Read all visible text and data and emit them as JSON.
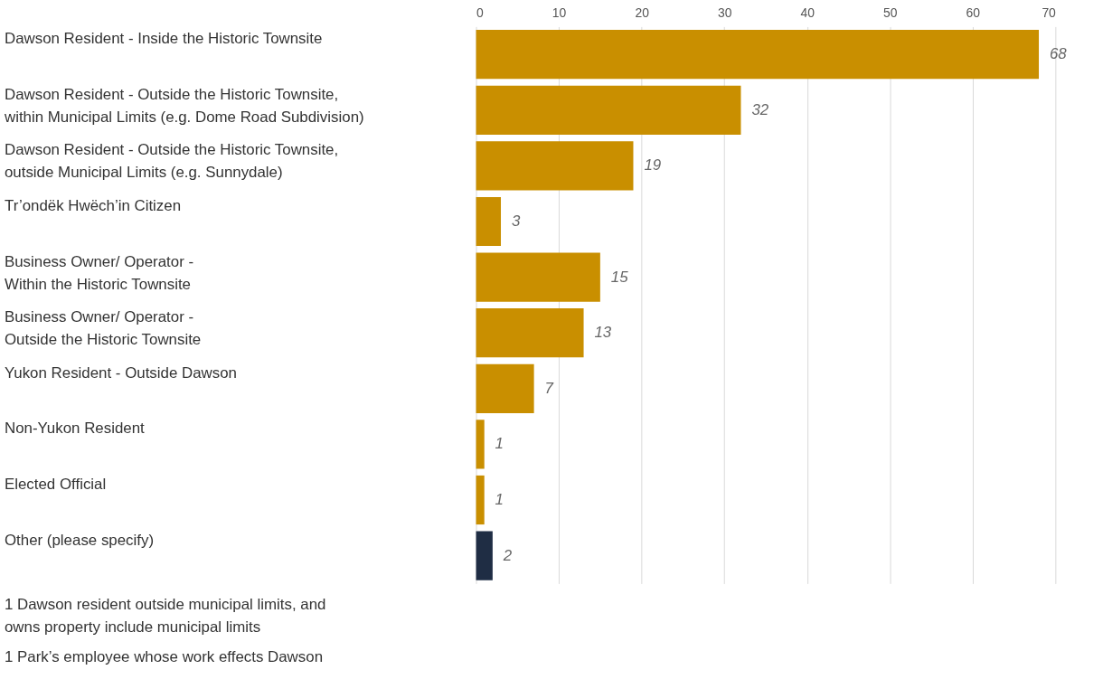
{
  "chart_data": {
    "type": "bar",
    "orientation": "horizontal",
    "categories": [
      "Dawson Resident - Inside the Historic Townsite",
      "Dawson Resident - Outside the Historic Townsite,\nwithin Municipal Limits (e.g. Dome Road Subdivision)",
      "Dawson Resident - Outside the Historic Townsite,\noutside Municipal Limits (e.g. Sunnydale)",
      "Tr’ondëk Hwëch’in Citizen",
      "Business Owner/ Operator -\nWithin the Historic Townsite",
      "Business Owner/ Operator -\nOutside the Historic Townsite",
      "Yukon Resident - Outside Dawson",
      "Non-Yukon Resident",
      "Elected Official",
      "Other (please specify)"
    ],
    "values": [
      68,
      32,
      19,
      3,
      15,
      13,
      7,
      1,
      1,
      2
    ],
    "colors": [
      "#c98f00",
      "#c98f00",
      "#c98f00",
      "#c98f00",
      "#c98f00",
      "#c98f00",
      "#c98f00",
      "#c98f00",
      "#c98f00",
      "#1f2d44"
    ],
    "xlim": [
      0,
      70
    ],
    "xticks": [
      0,
      10,
      20,
      30,
      40,
      50,
      60,
      70
    ],
    "grid": "x",
    "data_labels": true,
    "legend": false,
    "annotations": [
      "1    Dawson resident outside municipal limits, and\n      owns property include municipal limits",
      "1    Park’s employee whose work effects Dawson"
    ]
  }
}
